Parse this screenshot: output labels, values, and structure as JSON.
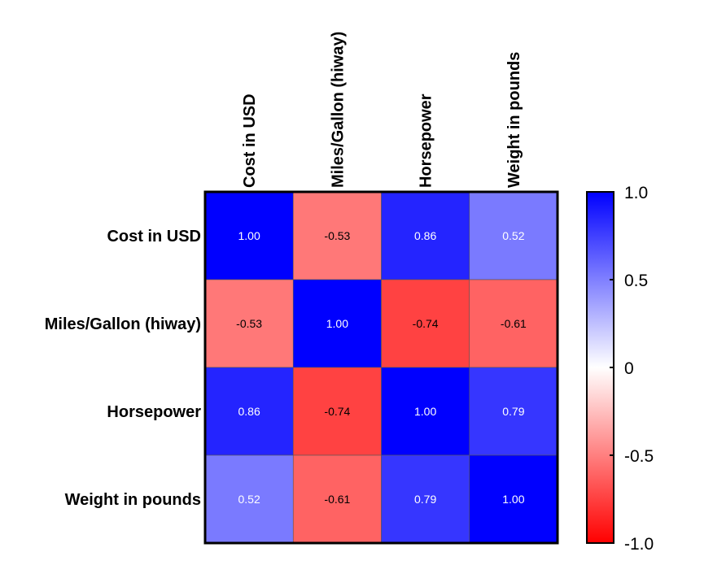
{
  "chart_data": {
    "type": "heatmap",
    "title": "",
    "variables": [
      "Cost in USD",
      "Miles/Gallon (hiway)",
      "Horsepower",
      "Weight in pounds"
    ],
    "matrix": [
      [
        1.0,
        -0.53,
        0.86,
        0.52
      ],
      [
        -0.53,
        1.0,
        -0.74,
        -0.61
      ],
      [
        0.86,
        -0.74,
        1.0,
        0.79
      ],
      [
        0.52,
        -0.61,
        0.79,
        1.0
      ]
    ],
    "value_format_decimals": 2,
    "colorbar": {
      "min": -1.0,
      "max": 1.0,
      "ticks": [
        1.0,
        0.5,
        0,
        -0.5,
        -1.0
      ],
      "tick_labels": [
        "1.0",
        "0.5",
        "0",
        "-0.5",
        "-1.0"
      ],
      "low_color": "#ff0000",
      "mid_color": "#ffffff",
      "high_color": "#0000ff"
    }
  }
}
